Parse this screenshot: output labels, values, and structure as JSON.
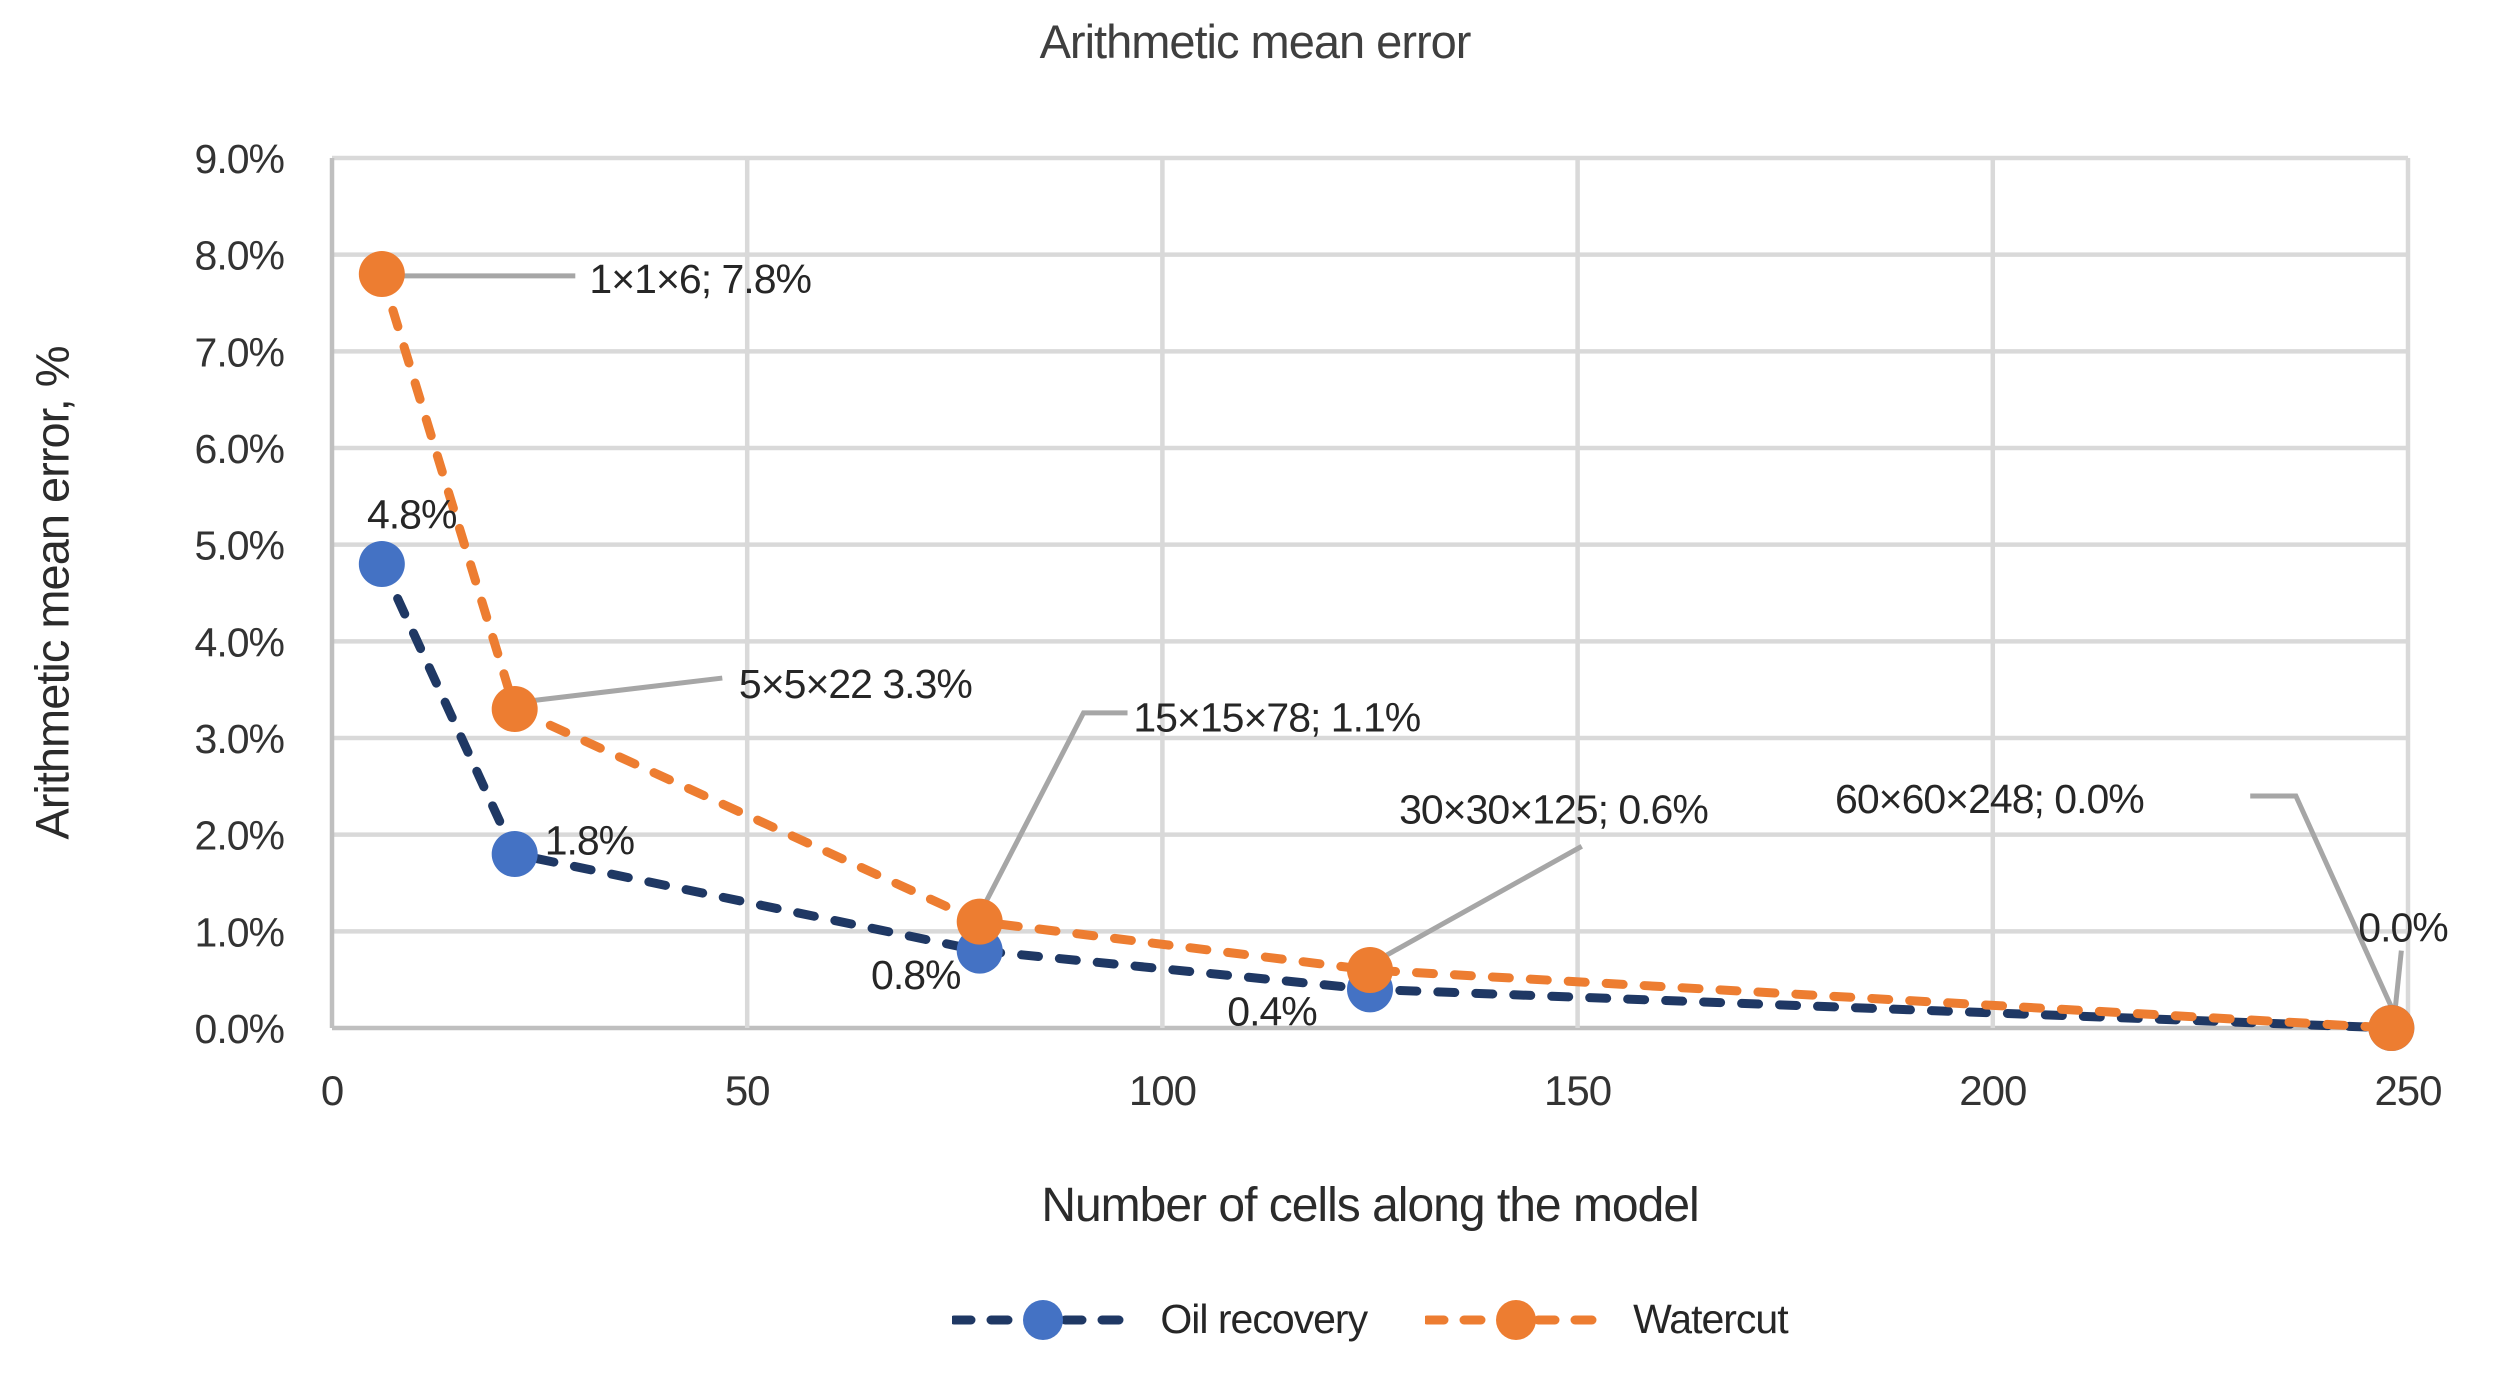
{
  "chart_data": {
    "type": "line",
    "title": "Arithmetic mean error",
    "xlabel": "Number of cells along the model",
    "ylabel": "Arithmetic mean error, %",
    "xlim": [
      0,
      250
    ],
    "ylim": [
      0,
      9
    ],
    "x_ticks": [
      0,
      50,
      100,
      150,
      200,
      250
    ],
    "y_ticks": [
      "0.0%",
      "1.0%",
      "2.0%",
      "3.0%",
      "4.0%",
      "5.0%",
      "6.0%",
      "7.0%",
      "8.0%",
      "9.0%"
    ],
    "grid": true,
    "legend_position": "bottom",
    "x": [
      6,
      22,
      78,
      125,
      248
    ],
    "series": [
      {
        "name": "Oil recovery",
        "line_color": "#1f3864",
        "marker_color": "#4472c4",
        "values": [
          4.8,
          1.8,
          0.8,
          0.4,
          0.0
        ],
        "point_labels": [
          {
            "text": "4.8%",
            "lx": 9.6,
            "ly": 5.32
          },
          {
            "text": "1.8%",
            "lx": 31.0,
            "ly": 1.95
          },
          {
            "text": "0.8%",
            "lx": 70.3,
            "ly": 0.56
          },
          {
            "text": "0.4%",
            "lx": 113.2,
            "ly": 0.18
          },
          {
            "text": "0.0%",
            "lx": 249.4,
            "ly": 1.05,
            "leader": [
              [
                249.2,
                0.8
              ],
              [
                248.4,
                0.15
              ]
            ]
          }
        ]
      },
      {
        "name": "Watercut",
        "line_color": "#ed7d31",
        "marker_color": "#ed7d31",
        "values": [
          7.8,
          3.3,
          1.1,
          0.6,
          0.0
        ],
        "annotations": [
          {
            "text": "1×1×6; 7.8%",
            "tx": 31.0,
            "ty": 7.76,
            "leader": [
              [
                7.5,
                7.78
              ],
              [
                29.3,
                7.78
              ]
            ]
          },
          {
            "text": "5×5×22 3.3%",
            "tx": 49.0,
            "ty": 3.57,
            "leader": [
              [
                23.5,
                3.38
              ],
              [
                47.0,
                3.62
              ]
            ]
          },
          {
            "text": "15×15×78; 1.1%",
            "tx": 96.5,
            "ty": 3.22,
            "leader": [
              [
                95.8,
                3.26
              ],
              [
                90.5,
                3.26
              ],
              [
                78.6,
                1.28
              ]
            ]
          },
          {
            "text": "30×30×125; 0.6%",
            "tx": 128.5,
            "ty": 2.27,
            "leader": [
              [
                150.5,
                1.88
              ],
              [
                126.3,
                0.72
              ]
            ]
          },
          {
            "text": "60×60×248; 0.0%",
            "tx": 181.0,
            "ty": 2.38,
            "leader": [
              [
                231.0,
                2.4
              ],
              [
                236.5,
                2.4
              ],
              [
                248.2,
                0.18
              ]
            ]
          }
        ]
      }
    ],
    "colors": {
      "gridline": "#d9d9d9",
      "axis_line": "#bfbfbf",
      "leader_line": "#a6a6a6",
      "label_text": "#262626",
      "tick_text": "#333333",
      "title_text": "#3f3f3f"
    }
  }
}
